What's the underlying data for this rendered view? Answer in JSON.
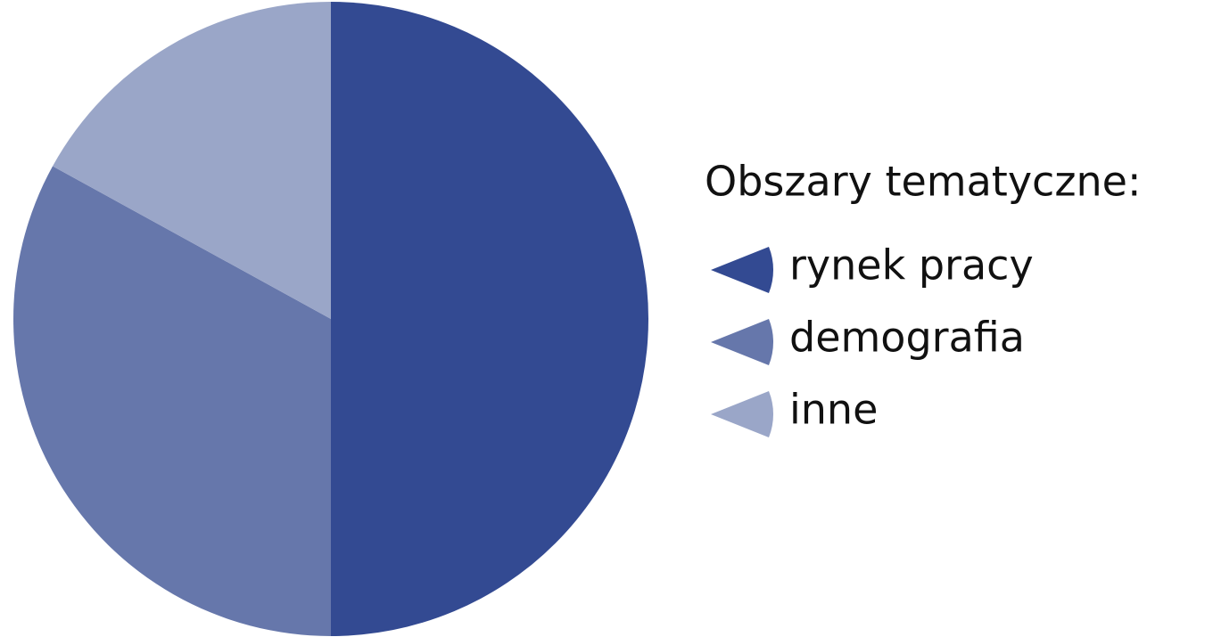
{
  "chart_data": {
    "type": "pie",
    "legend_title": "Obszary tematyczne:",
    "categories": [
      "rynek pracy",
      "demografia",
      "inne"
    ],
    "values": [
      50,
      33,
      17
    ],
    "colors": [
      "#334a92",
      "#6677ab",
      "#9aa6c8"
    ],
    "legend": "right"
  }
}
